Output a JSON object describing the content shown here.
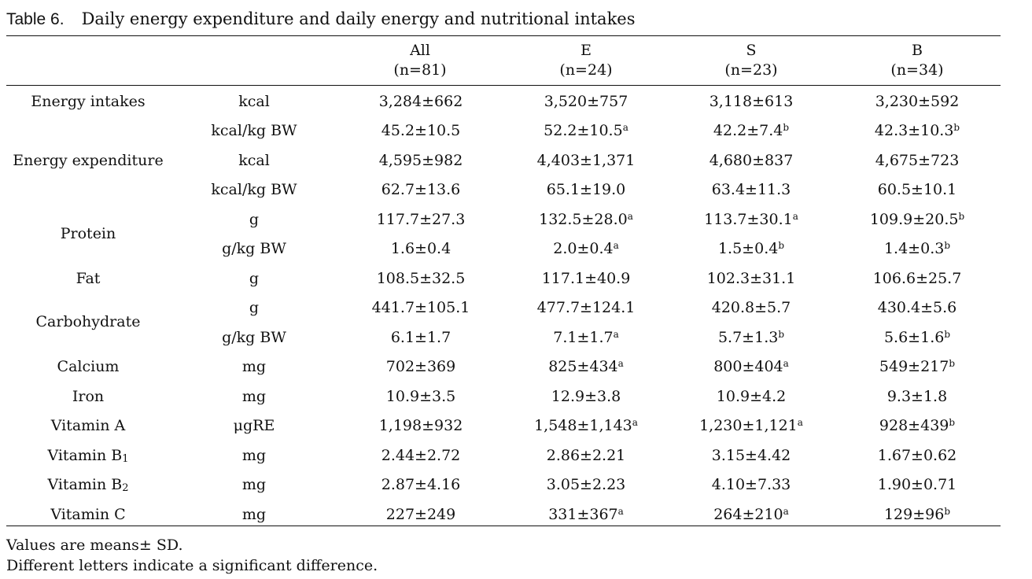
{
  "table": {
    "label": "Table 6.",
    "caption": "Daily energy expenditure and daily energy and nutritional intakes",
    "columns": [
      {
        "name": "All",
        "n": "(n=81)"
      },
      {
        "name": "E",
        "n": "(n=24)"
      },
      {
        "name": "S",
        "n": "(n=23)"
      },
      {
        "name": "B",
        "n": "(n=34)"
      }
    ],
    "rows": [
      {
        "nutrient": "Energy intakes",
        "unit": "kcal",
        "values": [
          {
            "v": "3,284±662",
            "s": ""
          },
          {
            "v": "3,520±757",
            "s": ""
          },
          {
            "v": "3,118±613",
            "s": ""
          },
          {
            "v": "3,230±592",
            "s": ""
          }
        ]
      },
      {
        "nutrient": "",
        "unit": "kcal/kg BW",
        "values": [
          {
            "v": "45.2±10.5",
            "s": ""
          },
          {
            "v": "52.2±10.5",
            "s": "a"
          },
          {
            "v": "42.2±7.4",
            "s": "b"
          },
          {
            "v": "42.3±10.3",
            "s": "b"
          }
        ]
      },
      {
        "nutrient": "Energy expenditure",
        "unit": "kcal",
        "values": [
          {
            "v": "4,595±982",
            "s": ""
          },
          {
            "v": "4,403±1,371",
            "s": ""
          },
          {
            "v": "4,680±837",
            "s": ""
          },
          {
            "v": "4,675±723",
            "s": ""
          }
        ]
      },
      {
        "nutrient": "",
        "unit": "kcal/kg BW",
        "values": [
          {
            "v": "62.7±13.6",
            "s": ""
          },
          {
            "v": "65.1±19.0",
            "s": ""
          },
          {
            "v": "63.4±11.3",
            "s": ""
          },
          {
            "v": "60.5±10.1",
            "s": ""
          }
        ]
      },
      {
        "nutrient": "Protein",
        "unit": "g",
        "values": [
          {
            "v": "117.7±27.3",
            "s": ""
          },
          {
            "v": "132.5±28.0",
            "s": "a"
          },
          {
            "v": "113.7±30.1",
            "s": "a"
          },
          {
            "v": "109.9±20.5",
            "s": "b"
          }
        ]
      },
      {
        "nutrient": "",
        "unit": "g/kg BW",
        "values": [
          {
            "v": "1.6±0.4",
            "s": ""
          },
          {
            "v": "2.0±0.4",
            "s": "a"
          },
          {
            "v": "1.5±0.4",
            "s": "b"
          },
          {
            "v": "1.4±0.3",
            "s": "b"
          }
        ]
      },
      {
        "nutrient": "Fat",
        "unit": "g",
        "values": [
          {
            "v": "108.5±32.5",
            "s": ""
          },
          {
            "v": "117.1±40.9",
            "s": ""
          },
          {
            "v": "102.3±31.1",
            "s": ""
          },
          {
            "v": "106.6±25.7",
            "s": ""
          }
        ]
      },
      {
        "nutrient": "Carbohydrate",
        "unit": "g",
        "values": [
          {
            "v": "441.7±105.1",
            "s": ""
          },
          {
            "v": "477.7±124.1",
            "s": ""
          },
          {
            "v": "420.8±5.7",
            "s": ""
          },
          {
            "v": "430.4±5.6",
            "s": ""
          }
        ]
      },
      {
        "nutrient": "",
        "unit": "g/kg BW",
        "values": [
          {
            "v": "6.1±1.7",
            "s": ""
          },
          {
            "v": "7.1±1.7",
            "s": "a"
          },
          {
            "v": "5.7±1.3",
            "s": "b"
          },
          {
            "v": "5.6±1.6",
            "s": "b"
          }
        ]
      },
      {
        "nutrient": "Calcium",
        "unit": "mg",
        "values": [
          {
            "v": "702±369",
            "s": ""
          },
          {
            "v": "825±434",
            "s": "a"
          },
          {
            "v": "800±404",
            "s": "a"
          },
          {
            "v": "549±217",
            "s": "b"
          }
        ]
      },
      {
        "nutrient": "Iron",
        "unit": "mg",
        "values": [
          {
            "v": "10.9±3.5",
            "s": ""
          },
          {
            "v": "12.9±3.8",
            "s": ""
          },
          {
            "v": "10.9±4.2",
            "s": ""
          },
          {
            "v": "9.3±1.8",
            "s": ""
          }
        ]
      },
      {
        "nutrient": "Vitamin A",
        "unit": "μgRE",
        "values": [
          {
            "v": "1,198±932",
            "s": ""
          },
          {
            "v": "1,548±1,143",
            "s": "a"
          },
          {
            "v": "1,230±1,121",
            "s": "a"
          },
          {
            "v": "928±439",
            "s": "b"
          }
        ]
      },
      {
        "nutrient": "Vitamin B",
        "nutrient_sub": "1",
        "unit": "mg",
        "values": [
          {
            "v": "2.44±2.72",
            "s": ""
          },
          {
            "v": "2.86±2.21",
            "s": ""
          },
          {
            "v": "3.15±4.42",
            "s": ""
          },
          {
            "v": "1.67±0.62",
            "s": ""
          }
        ]
      },
      {
        "nutrient": "Vitamin B",
        "nutrient_sub": "2",
        "unit": "mg",
        "values": [
          {
            "v": "2.87±4.16",
            "s": ""
          },
          {
            "v": "3.05±2.23",
            "s": ""
          },
          {
            "v": "4.10±7.33",
            "s": ""
          },
          {
            "v": "1.90±0.71",
            "s": ""
          }
        ]
      },
      {
        "nutrient": "Vitamin C",
        "unit": "mg",
        "values": [
          {
            "v": "227±249",
            "s": ""
          },
          {
            "v": "331±367",
            "s": "a"
          },
          {
            "v": "264±210",
            "s": "a"
          },
          {
            "v": "129±96",
            "s": "b"
          }
        ]
      }
    ]
  },
  "footnotes": [
    "Values are means± SD.",
    "Different letters indicate a significant difference."
  ]
}
